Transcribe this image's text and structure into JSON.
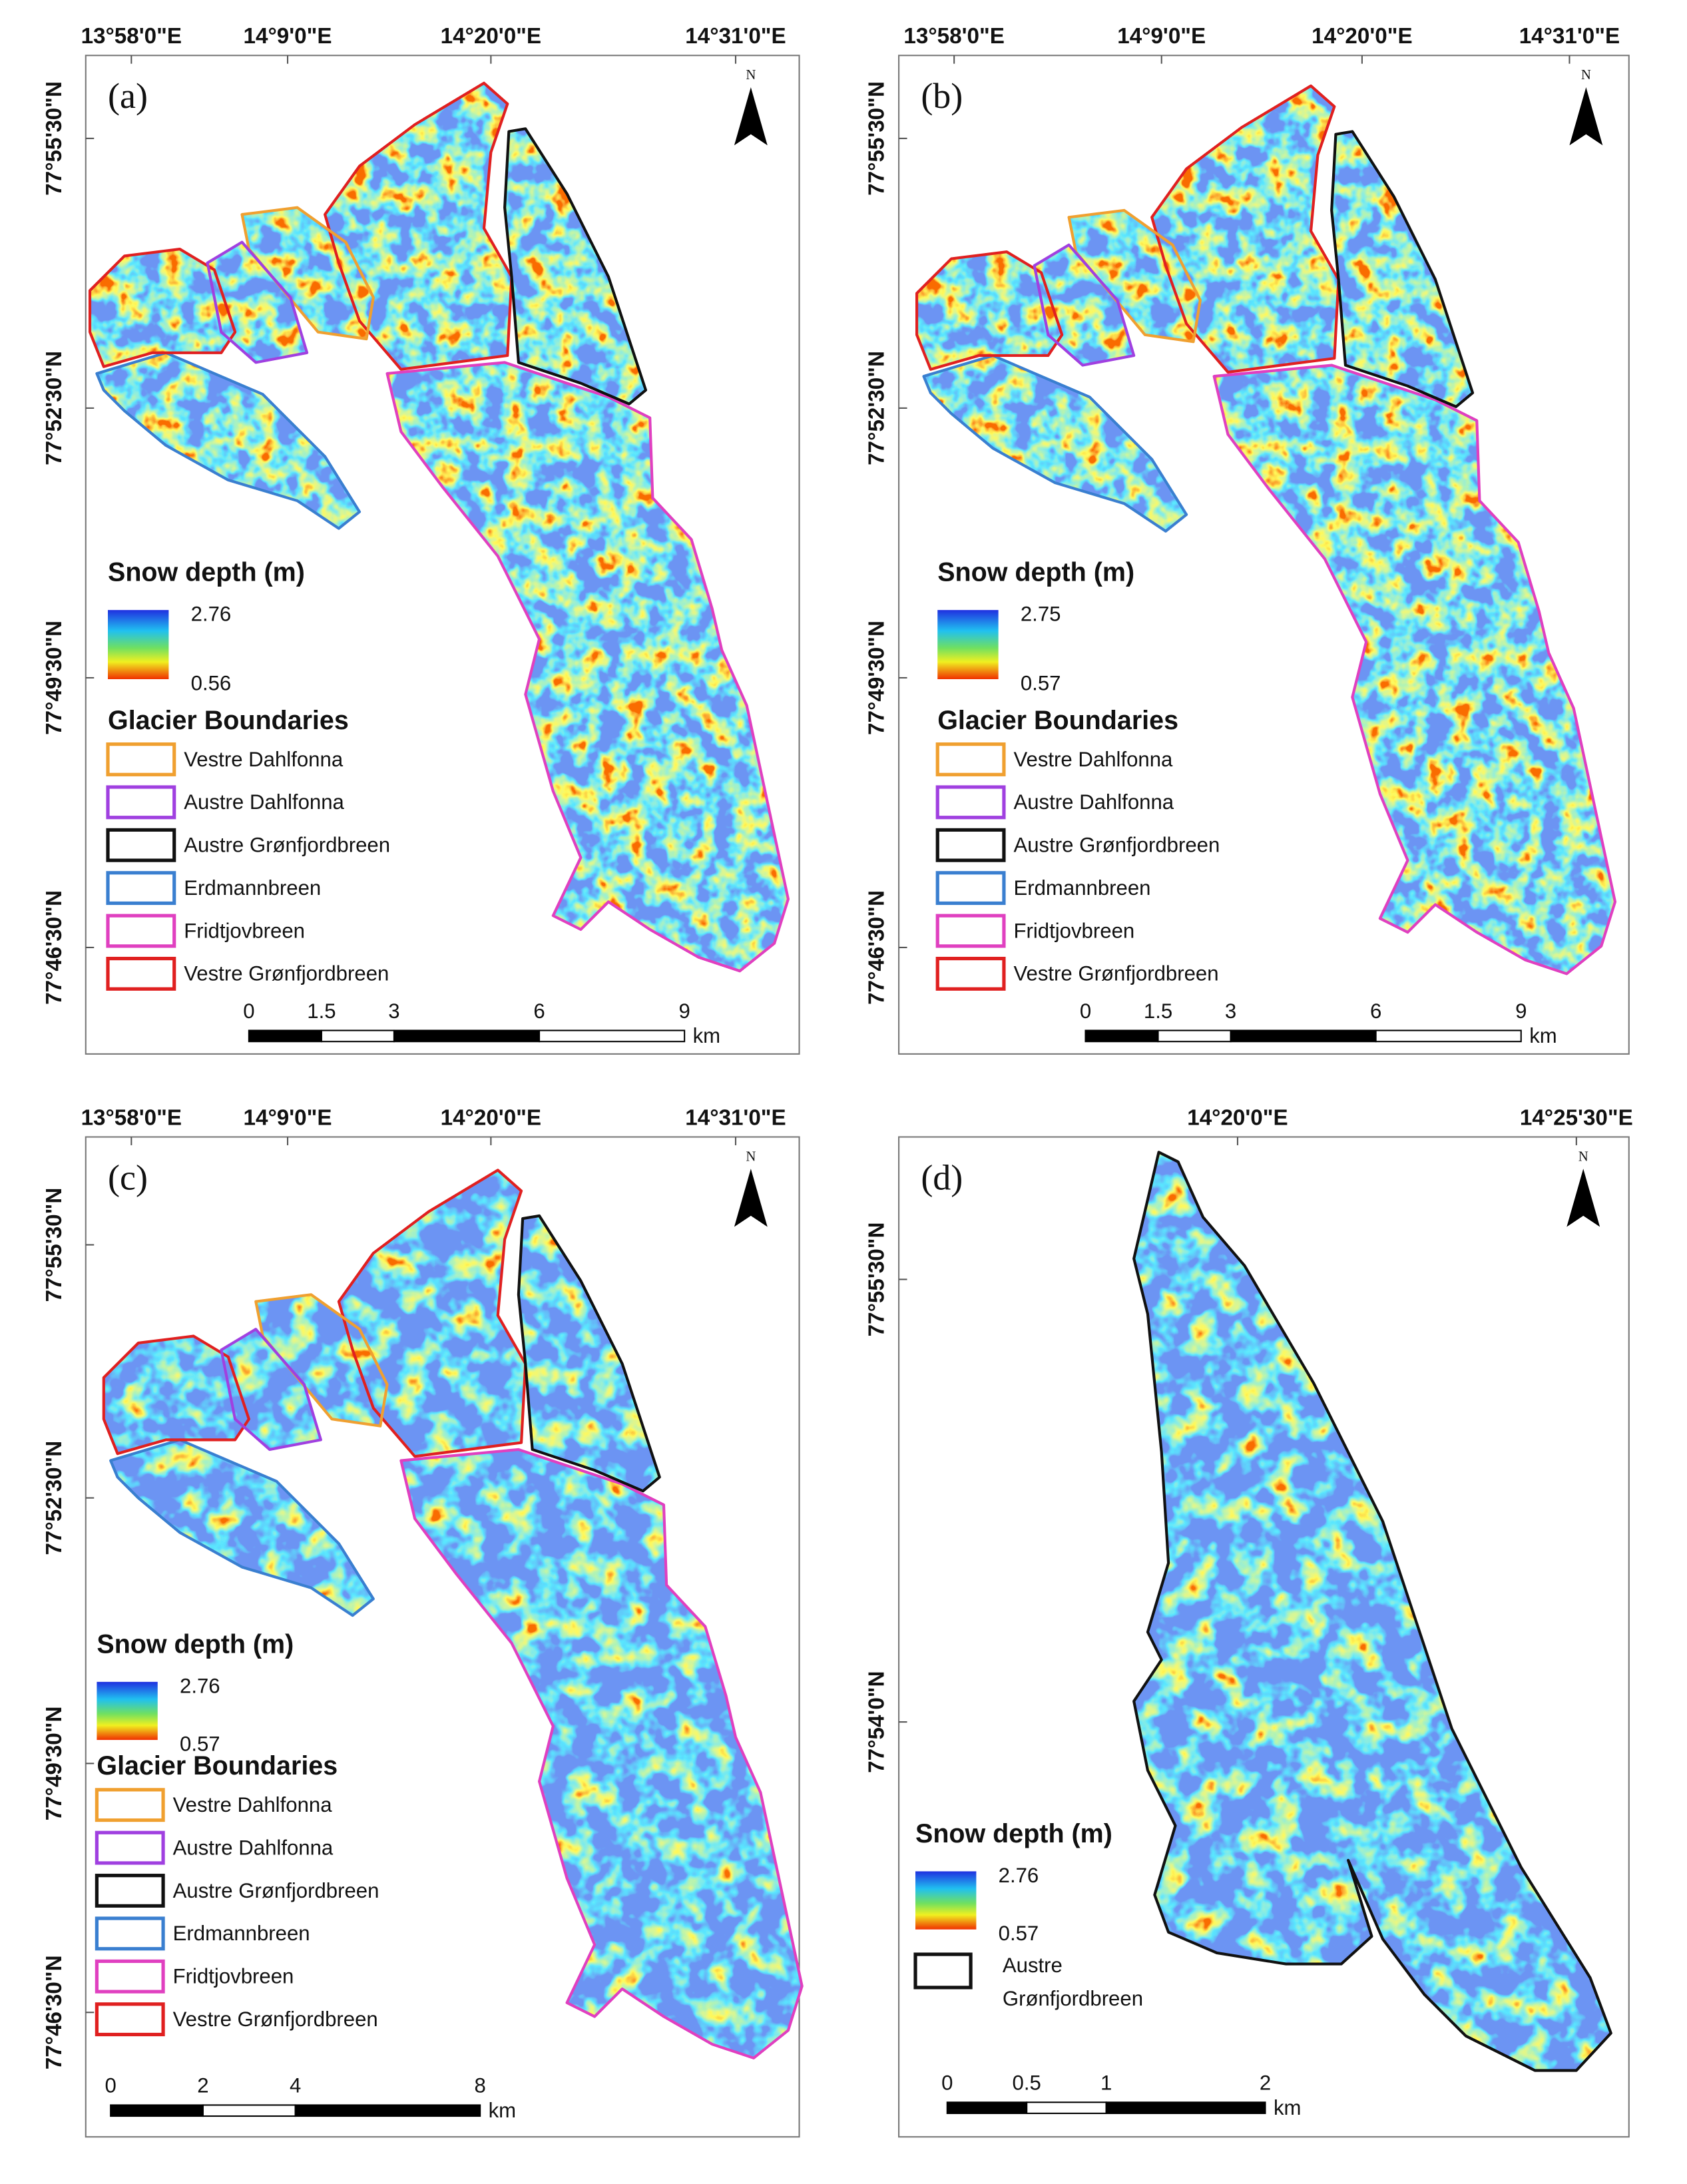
{
  "panels": [
    {
      "label": "(a)",
      "north": "N",
      "lon_labels": [
        "13°58'0\"E",
        "14°9'0\"E",
        "14°20'0\"E",
        "14°31'0\"E"
      ],
      "lat_labels": [
        "77°55'30\"N",
        "77°52'30\"N",
        "77°49'30\"N",
        "77°46'30\"N"
      ],
      "legend": {
        "title": "Snow depth (m)",
        "max": 2.76,
        "min": 0.56,
        "boundaries_title": "Glacier Boundaries",
        "boundaries": [
          {
            "name": "Vestre Dahlfonna",
            "color": "#f0a030"
          },
          {
            "name": "Austre Dahlfonna",
            "color": "#a040e0"
          },
          {
            "name": "Austre Grønfjordbreen",
            "color": "#111111"
          },
          {
            "name": "Erdmannbreen",
            "color": "#3a7fd0"
          },
          {
            "name": "Fridtjovbreen",
            "color": "#e040c0"
          },
          {
            "name": "Vestre Grønfjordbreen",
            "color": "#e02020"
          }
        ]
      },
      "scale": {
        "ticks": [
          0,
          1.5,
          3,
          6,
          9
        ],
        "unit": "km"
      }
    },
    {
      "label": "(b)",
      "north": "N",
      "lon_labels": [
        "13°58'0\"E",
        "14°9'0\"E",
        "14°20'0\"E",
        "14°31'0\"E"
      ],
      "lat_labels": [
        "77°55'30\"N",
        "77°52'30\"N",
        "77°49'30\"N",
        "77°46'30\"N"
      ],
      "legend": {
        "title": "Snow depth (m)",
        "max": 2.75,
        "min": 0.57,
        "boundaries_title": "Glacier Boundaries",
        "boundaries": [
          {
            "name": "Vestre Dahlfonna",
            "color": "#f0a030"
          },
          {
            "name": "Austre Dahlfonna",
            "color": "#a040e0"
          },
          {
            "name": "Austre Grønfjordbreen",
            "color": "#111111"
          },
          {
            "name": "Erdmannbreen",
            "color": "#3a7fd0"
          },
          {
            "name": "Fridtjovbreen",
            "color": "#e040c0"
          },
          {
            "name": "Vestre Grønfjordbreen",
            "color": "#e02020"
          }
        ]
      },
      "scale": {
        "ticks": [
          0,
          1.5,
          3,
          6,
          9
        ],
        "unit": "km"
      }
    },
    {
      "label": "(c)",
      "north": "N",
      "lon_labels": [
        "13°58'0\"E",
        "14°9'0\"E",
        "14°20'0\"E",
        "14°31'0\"E"
      ],
      "lat_labels": [
        "77°55'30\"N",
        "77°52'30\"N",
        "77°49'30\"N",
        "77°46'30\"N"
      ],
      "legend": {
        "title": "Snow depth (m)",
        "max": 2.76,
        "min": 0.57,
        "boundaries_title": "Glacier Boundaries",
        "boundaries": [
          {
            "name": "Vestre Dahlfonna",
            "color": "#f0a030"
          },
          {
            "name": "Austre Dahlfonna",
            "color": "#a040e0"
          },
          {
            "name": "Austre Grønfjordbreen",
            "color": "#111111"
          },
          {
            "name": "Erdmannbreen",
            "color": "#3a7fd0"
          },
          {
            "name": "Fridtjovbreen",
            "color": "#e040c0"
          },
          {
            "name": "Vestre Grønfjordbreen",
            "color": "#e02020"
          }
        ]
      },
      "scale": {
        "ticks": [
          0,
          2,
          4,
          8
        ],
        "unit": "km"
      }
    },
    {
      "label": "(d)",
      "north": "N",
      "lon_labels": [
        "14°20'0\"E",
        "14°25'30\"E"
      ],
      "lat_labels": [
        "77°55'30\"N",
        "77°54'0\"N"
      ],
      "legend": {
        "title": "Snow depth (m)",
        "max": 2.76,
        "min": 0.57,
        "boundaries": [
          {
            "lines": [
              "Austre",
              "Grønfjordbreen"
            ],
            "color": "#111111"
          }
        ]
      },
      "scale": {
        "ticks": [
          0,
          0.5,
          1,
          2
        ],
        "unit": "km"
      }
    }
  ]
}
